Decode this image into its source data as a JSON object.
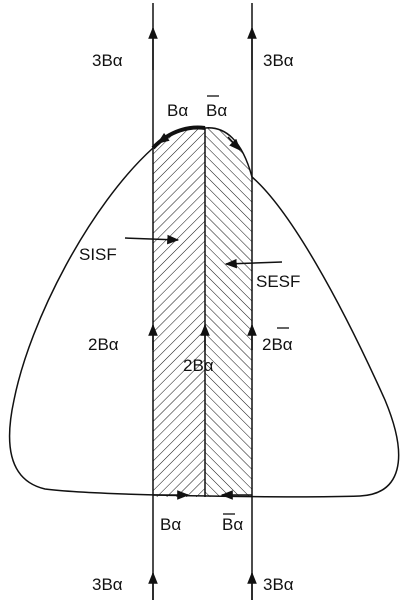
{
  "labels": {
    "top_left": "3Bα",
    "top_right": "3Bα",
    "cap_left": "Bα",
    "cap_right": "Bα",
    "sisf": "SISF",
    "sesf": "SESF",
    "mid_left": "2Bα",
    "mid_right": "2Bα",
    "mid_center": "2Bα",
    "bottom_left_inner": "Bα",
    "bottom_right_inner": "Bα",
    "bottom_left": "3Bα",
    "bottom_right": "3Bα"
  },
  "colors": {
    "line": "#111111",
    "background": "#ffffff"
  }
}
